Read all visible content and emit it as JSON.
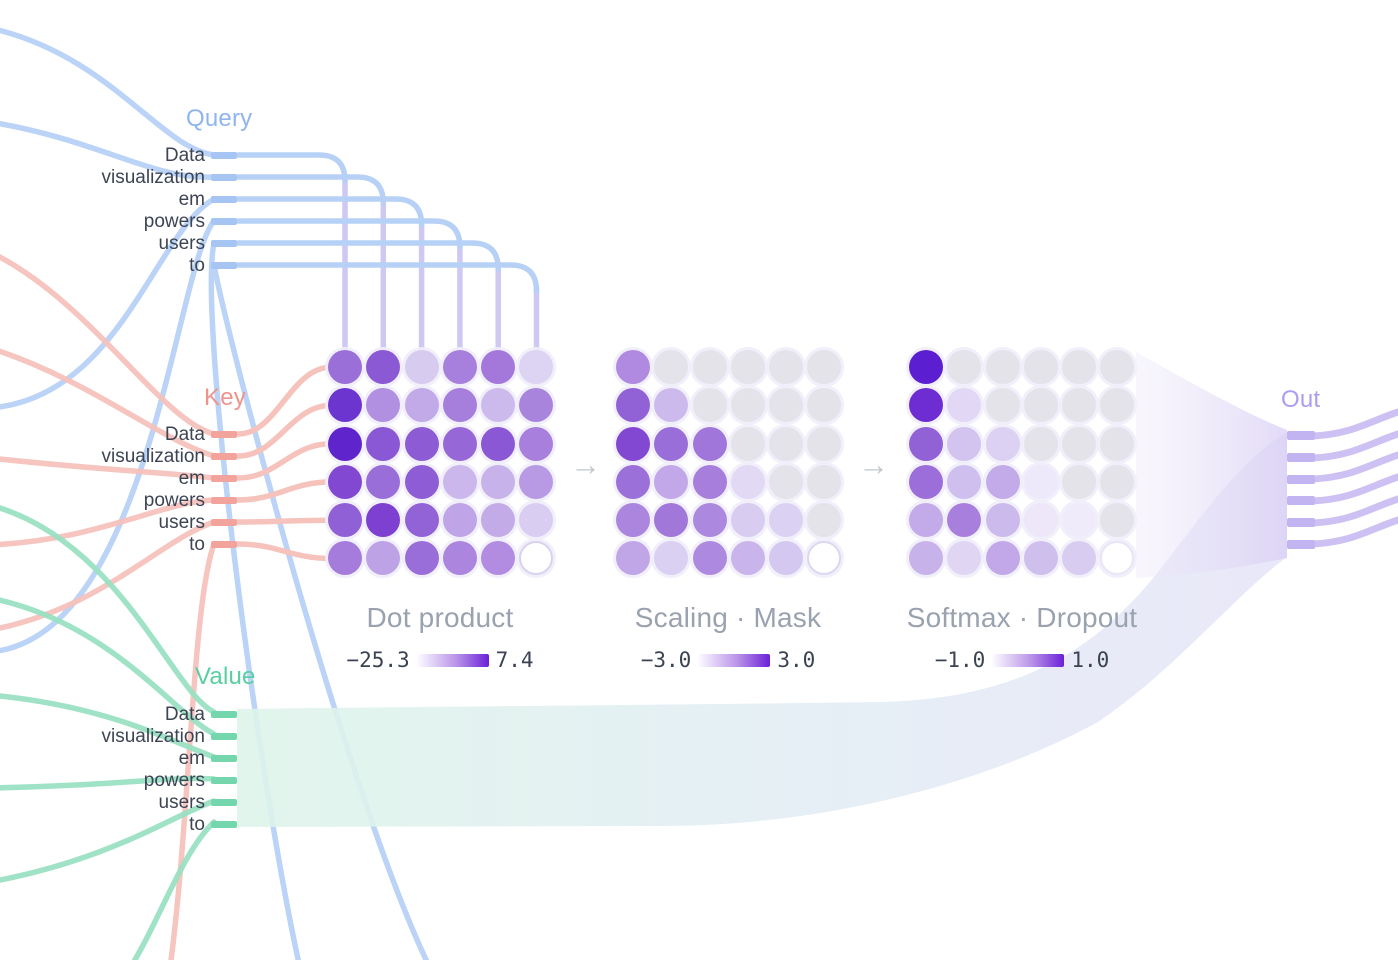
{
  "labels": {
    "query": "Query",
    "key": "Key",
    "value": "Value",
    "out": "Out"
  },
  "tokens": [
    "Data",
    "visualization",
    "em",
    "powers",
    "users",
    "to"
  ],
  "arrows": {
    "glyph": "→"
  },
  "stages": [
    {
      "title": "Dot product",
      "legend_min": "−25.3",
      "legend_max": "7.4"
    },
    {
      "title": "Scaling · Mask",
      "legend_min": "−3.0",
      "legend_max": "3.0"
    },
    {
      "title": "Softmax · Dropout",
      "legend_min": "−1.0",
      "legend_max": "1.0"
    }
  ],
  "colors": {
    "query_accent": "#a6c5f3",
    "query_line": "#b7d1f6",
    "key_accent": "#f2a39c",
    "key_line": "#f6c2bc",
    "value_accent": "#74d6ac",
    "value_line": "#9ae1c3",
    "out_accent": "#c2b4f0",
    "out_line": "#cdc1f3",
    "masked_cell": "#e3e3e9",
    "scale_low": "#ffffff",
    "scale_high": "#6b21d8",
    "caption_gray": "#9aa2b0",
    "token_text": "#3d4454"
  },
  "matrices": [
    {
      "name": "dot-product",
      "empty_color": "#ffffff",
      "empty_border": "#d8d2ee",
      "cells": [
        [
          "#9a6fd8",
          "#8b59d4",
          "#d7cbf0",
          "#a77fdc",
          "#a378da",
          "#ddd3f2"
        ],
        [
          "#6c35cf",
          "#b18fe1",
          "#c2a9e8",
          "#a67edc",
          "#cdbaec",
          "#a984dd"
        ],
        [
          "#5f24cb",
          "#8a58d4",
          "#8d5cd5",
          "#9668d7",
          "#8a58d4",
          "#a87fdc"
        ],
        [
          "#8248d2",
          "#9a6ed8",
          "#8e5dd5",
          "#cbb7eb",
          "#c7b2ea",
          "#b79ae3"
        ],
        [
          "#9060d6",
          "#7d40d0",
          "#9263d6",
          "#bfa4e7",
          "#c3abe8",
          "#d9cdf1"
        ],
        [
          "#a57cdc",
          "#bda2e6",
          "#9a6ed8",
          "#ab85de",
          "#b18ce0",
          "#ffffff"
        ]
      ]
    },
    {
      "name": "scaling-mask",
      "empty_color": "#ffffff",
      "empty_border": "#dcd7f0",
      "cells": [
        [
          "#af8ae0",
          "#e3e3e9",
          "#e3e3e9",
          "#e3e3e9",
          "#e3e3e9",
          "#e3e3e9"
        ],
        [
          "#9161d6",
          "#cdbaec",
          "#e3e3e9",
          "#e3e3e9",
          "#e3e3e9",
          "#e3e3e9"
        ],
        [
          "#8348d2",
          "#9a6ed8",
          "#a076da",
          "#e3e3e9",
          "#e3e3e9",
          "#e3e3e9"
        ],
        [
          "#9c70d9",
          "#c2a8e8",
          "#a77edc",
          "#e2d9f4",
          "#e3e3e9",
          "#e3e3e9"
        ],
        [
          "#ab85de",
          "#a177da",
          "#ad88df",
          "#d8ccf1",
          "#dbd1f2",
          "#e3e3e9"
        ],
        [
          "#c0a5e7",
          "#dad0f2",
          "#ad89df",
          "#c9b5eb",
          "#d5c8f0",
          "#ffffff"
        ]
      ]
    },
    {
      "name": "softmax-dropout",
      "empty_color": "#ffffff",
      "empty_border": "#e9e5f6",
      "cells": [
        [
          "#5b1ed0",
          "#e3e3e9",
          "#e3e3e9",
          "#e3e3e9",
          "#e3e3e9",
          "#e3e3e9"
        ],
        [
          "#6e2cd3",
          "#e2d8f5",
          "#e3e3e9",
          "#e3e3e9",
          "#e3e3e9",
          "#e3e3e9"
        ],
        [
          "#9161d6",
          "#d2c3ef",
          "#dcd1f3",
          "#e3e3e9",
          "#e3e3e9",
          "#e3e3e9"
        ],
        [
          "#9b6ed9",
          "#cfbfee",
          "#c3aae8",
          "#eee9fa",
          "#e3e3e9",
          "#e3e3e9"
        ],
        [
          "#c3aae8",
          "#a97fdd",
          "#cdbaec",
          "#ede7f9",
          "#f0ebfb",
          "#e3e3e9"
        ],
        [
          "#c8b2ea",
          "#e0d6f4",
          "#c2a8e8",
          "#cfbfed",
          "#d8ccf1",
          "#ffffff"
        ]
      ]
    }
  ]
}
